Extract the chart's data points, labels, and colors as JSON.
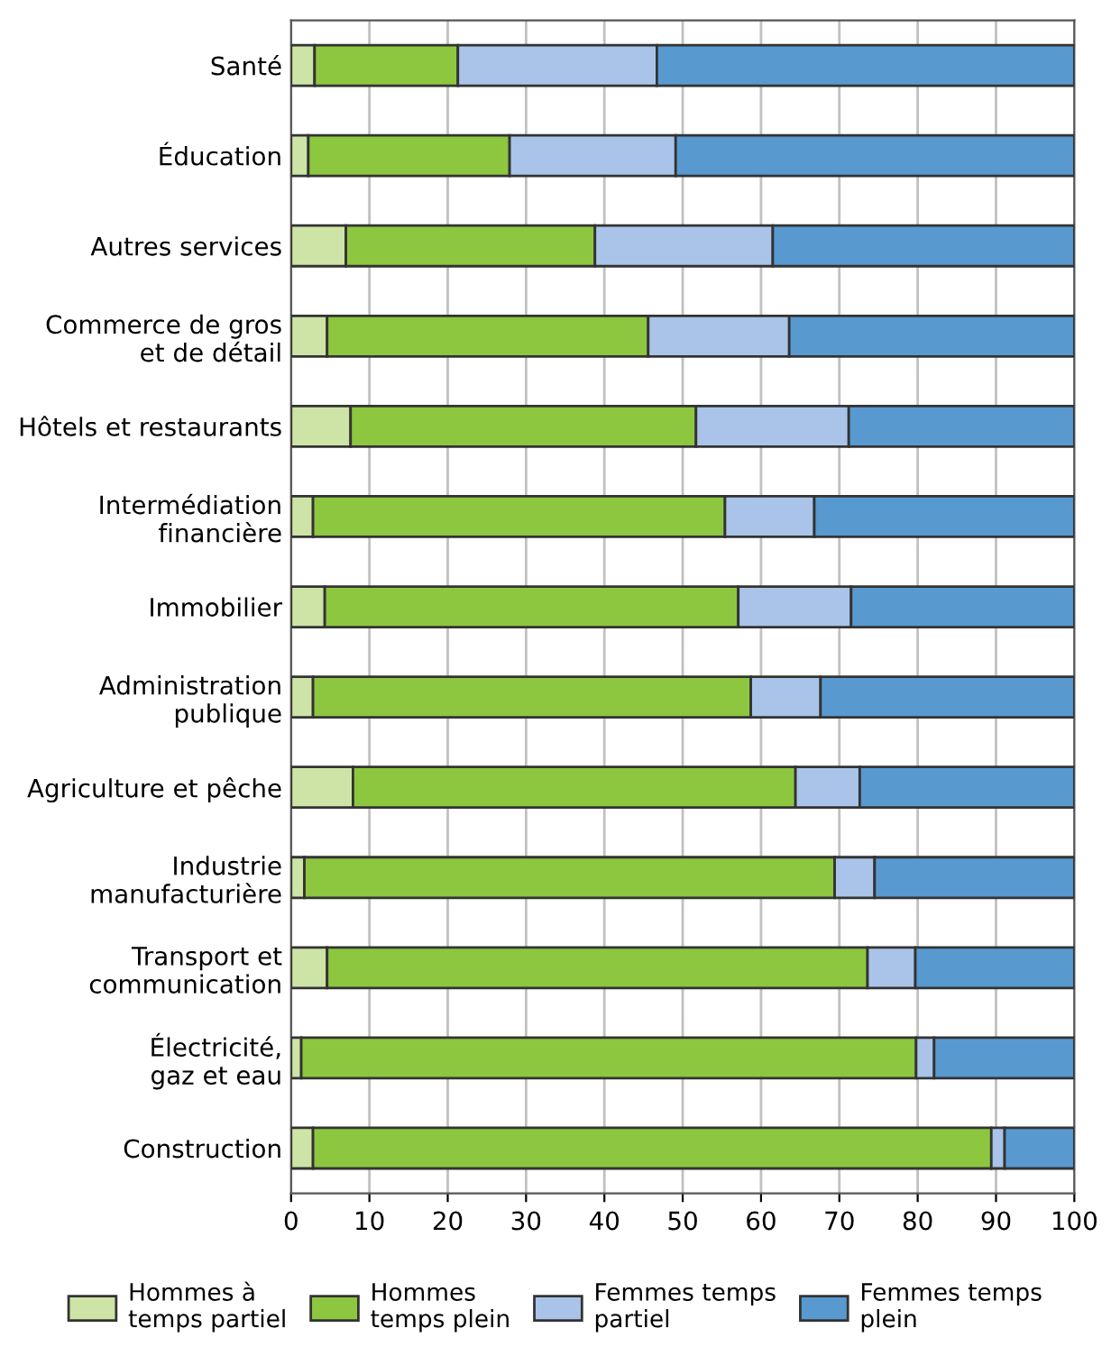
{
  "chart_data": {
    "type": "bar",
    "orientation": "horizontal",
    "stacked": true,
    "categories": [
      "Santé",
      "Éducation",
      "Autres services",
      "Commerce de gros\net de détail",
      "Hôtels et restaurants",
      "Intermédiation\nfinancière",
      "Immobilier",
      "Administration\npublique",
      "Agriculture et pêche",
      "Industrie\nmanufacturière",
      "Transport et\ncommunication",
      "Électricité,\ngaz et eau",
      "Construction"
    ],
    "series": [
      {
        "name": "Hommes à\ntemps partiel",
        "color": "#cde4a6",
        "values": [
          3.0,
          2.2,
          7.0,
          4.6,
          7.6,
          2.8,
          4.3,
          2.8,
          7.9,
          1.7,
          4.6,
          1.3,
          2.8
        ]
      },
      {
        "name": "Hommes\ntemps plein",
        "color": "#8dc63f",
        "values": [
          18.3,
          25.7,
          31.8,
          41.0,
          44.1,
          52.6,
          52.8,
          55.9,
          56.5,
          67.7,
          69.0,
          78.5,
          86.6
        ]
      },
      {
        "name": "Femmes temps\npartiel",
        "color": "#a9c4e8",
        "values": [
          25.4,
          21.2,
          22.7,
          18.0,
          19.5,
          11.4,
          14.4,
          8.9,
          8.2,
          5.1,
          6.1,
          2.3,
          1.7
        ]
      },
      {
        "name": "Femmes temps\nplein",
        "color": "#5899d0",
        "values": [
          53.3,
          50.9,
          38.5,
          36.4,
          28.8,
          33.2,
          28.5,
          32.4,
          27.4,
          25.5,
          20.3,
          17.9,
          8.9
        ]
      }
    ],
    "xlim": [
      0,
      100
    ],
    "xticks": [
      0,
      10,
      20,
      30,
      40,
      50,
      60,
      70,
      80,
      90,
      100
    ],
    "grid": "x",
    "legend": "bottom"
  }
}
